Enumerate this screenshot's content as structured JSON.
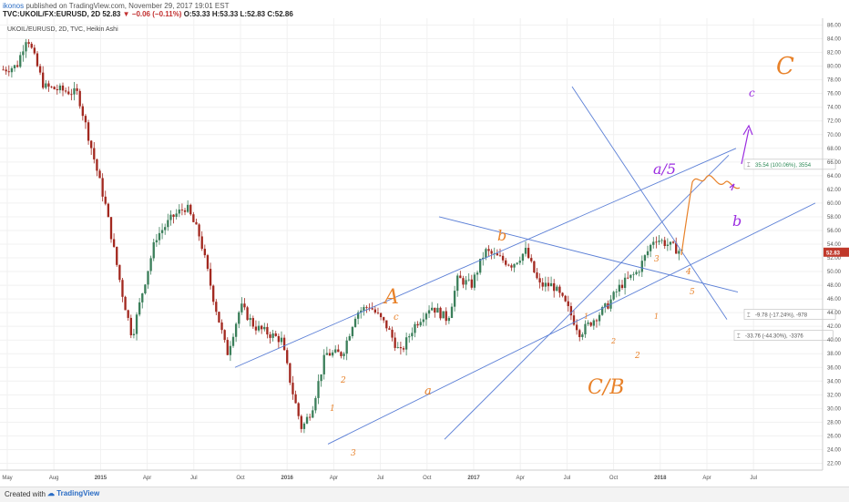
{
  "header": {
    "author": "ikonos",
    "published_text": "published on TradingView.com, November 29, 2017 19:01 EST",
    "symbol_line": "TVC:UKOIL/FX:EURUSD, 2D",
    "last": "52.83",
    "change": "−0.06 (−0.11%)",
    "ohlc": "O:53.33  H:53.33  L:52.83  C:52.86"
  },
  "footer": {
    "created_with": "Created with",
    "logo_text": "TradingView"
  },
  "colors": {
    "up": "#3b7f5a",
    "down": "#a2281f",
    "trendline": "#5b7fd6",
    "orange": "#e8822a",
    "purple": "#9b2de0",
    "price_badge": "#c0392b"
  },
  "chart_data": {
    "type": "candlestick",
    "title": "UKOIL/EURUSD, 2D, TVC, Heikin Ashi",
    "ylim": [
      21,
      87
    ],
    "y_ticks": [
      22,
      24,
      26,
      28,
      30,
      32,
      34,
      36,
      38,
      40,
      42,
      44,
      46,
      48,
      50,
      52,
      54,
      56,
      58,
      60,
      62,
      64,
      66,
      68,
      70,
      72,
      74,
      76,
      78,
      80,
      82,
      84,
      86
    ],
    "x_ticks": [
      "May",
      "Aug",
      "2015",
      "Apr",
      "Jul",
      "Oct",
      "2016",
      "Apr",
      "Jul",
      "Oct",
      "2017",
      "Apr",
      "Jul",
      "Oct",
      "2018",
      "Apr",
      "Jul"
    ],
    "last_price_label": "52.83",
    "trend_anchors": [
      {
        "t": 0,
        "price": 79.5
      },
      {
        "t": 0.02,
        "price": 80
      },
      {
        "t": 0.035,
        "price": 84.5
      },
      {
        "t": 0.06,
        "price": 77
      },
      {
        "t": 0.11,
        "price": 76
      },
      {
        "t": 0.125,
        "price": 70
      },
      {
        "t": 0.15,
        "price": 60
      },
      {
        "t": 0.175,
        "price": 47
      },
      {
        "t": 0.19,
        "price": 40.5
      },
      {
        "t": 0.205,
        "price": 47
      },
      {
        "t": 0.225,
        "price": 55
      },
      {
        "t": 0.25,
        "price": 58
      },
      {
        "t": 0.27,
        "price": 59.5
      },
      {
        "t": 0.29,
        "price": 55
      },
      {
        "t": 0.31,
        "price": 46
      },
      {
        "t": 0.33,
        "price": 38
      },
      {
        "t": 0.35,
        "price": 45
      },
      {
        "t": 0.37,
        "price": 42
      },
      {
        "t": 0.41,
        "price": 40
      },
      {
        "t": 0.425,
        "price": 33
      },
      {
        "t": 0.44,
        "price": 27
      },
      {
        "t": 0.455,
        "price": 30
      },
      {
        "t": 0.475,
        "price": 38
      },
      {
        "t": 0.5,
        "price": 38
      },
      {
        "t": 0.52,
        "price": 44
      },
      {
        "t": 0.54,
        "price": 45
      },
      {
        "t": 0.565,
        "price": 42
      },
      {
        "t": 0.585,
        "price": 38
      },
      {
        "t": 0.605,
        "price": 42
      },
      {
        "t": 0.63,
        "price": 45
      },
      {
        "t": 0.655,
        "price": 43
      },
      {
        "t": 0.67,
        "price": 49
      },
      {
        "t": 0.69,
        "price": 48
      },
      {
        "t": 0.71,
        "price": 53
      },
      {
        "t": 0.73,
        "price": 52
      },
      {
        "t": 0.75,
        "price": 51
      },
      {
        "t": 0.77,
        "price": 53
      },
      {
        "t": 0.79,
        "price": 48
      },
      {
        "t": 0.81,
        "price": 48
      },
      {
        "t": 0.83,
        "price": 45
      },
      {
        "t": 0.85,
        "price": 41
      },
      {
        "t": 0.87,
        "price": 43
      },
      {
        "t": 0.89,
        "price": 45
      },
      {
        "t": 0.91,
        "price": 48
      },
      {
        "t": 0.935,
        "price": 50
      },
      {
        "t": 0.96,
        "price": 55
      },
      {
        "t": 1.0,
        "price": 52.83
      }
    ],
    "measurements": [
      {
        "label": "35.54 (100.06%), 3554",
        "color": "#2e8b57"
      },
      {
        "label": "-9.78 (-17.24%), -978",
        "color": "#555"
      },
      {
        "label": "-33.76 (-44.30%), -3376",
        "color": "#555"
      }
    ],
    "annotations_orange": [
      "A",
      "c",
      "b",
      "C/B",
      "a",
      "1",
      "2",
      "3",
      "1",
      "2",
      "3",
      "4",
      "5",
      "1",
      "2",
      "C"
    ],
    "annotations_purple": [
      "a/5",
      "b",
      "c"
    ]
  }
}
